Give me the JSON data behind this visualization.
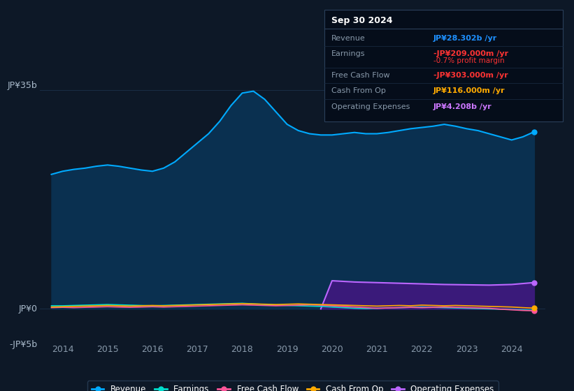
{
  "background_color": "#0d1827",
  "plot_bg_color": "#0d1827",
  "grid_color": "#1a2e45",
  "title_box": {
    "date": "Sep 30 2024",
    "rows": [
      {
        "label": "Revenue",
        "value": "JP¥28.302b /yr",
        "value_color": "#1e90ff"
      },
      {
        "label": "Earnings",
        "value": "-JP¥209.000m /yr",
        "value_color": "#ff3333",
        "sub": "-0.7% profit margin",
        "sub_color": "#ff3333"
      },
      {
        "label": "Free Cash Flow",
        "value": "-JP¥303.000m /yr",
        "value_color": "#ff3333"
      },
      {
        "label": "Cash From Op",
        "value": "JP¥116.000m /yr",
        "value_color": "#ffaa00"
      },
      {
        "label": "Operating Expenses",
        "value": "JP¥4.208b /yr",
        "value_color": "#cc77ff"
      }
    ]
  },
  "years": [
    2013.75,
    2014.0,
    2014.25,
    2014.5,
    2014.75,
    2015.0,
    2015.25,
    2015.5,
    2015.75,
    2016.0,
    2016.25,
    2016.5,
    2016.75,
    2017.0,
    2017.25,
    2017.5,
    2017.75,
    2018.0,
    2018.25,
    2018.5,
    2018.75,
    2019.0,
    2019.25,
    2019.5,
    2019.75,
    2020.0,
    2020.25,
    2020.5,
    2020.75,
    2021.0,
    2021.25,
    2021.5,
    2021.75,
    2022.0,
    2022.25,
    2022.5,
    2022.75,
    2023.0,
    2023.25,
    2023.5,
    2023.75,
    2024.0,
    2024.25,
    2024.5
  ],
  "revenue": [
    21.5,
    22.0,
    22.3,
    22.5,
    22.8,
    23.0,
    22.8,
    22.5,
    22.2,
    22.0,
    22.5,
    23.5,
    25.0,
    26.5,
    28.0,
    30.0,
    32.5,
    34.5,
    34.8,
    33.5,
    31.5,
    29.5,
    28.5,
    28.0,
    27.8,
    27.8,
    28.0,
    28.2,
    28.0,
    28.0,
    28.2,
    28.5,
    28.8,
    29.0,
    29.2,
    29.5,
    29.2,
    28.8,
    28.5,
    28.0,
    27.5,
    27.0,
    27.5,
    28.302
  ],
  "earnings": [
    0.5,
    0.5,
    0.55,
    0.6,
    0.65,
    0.7,
    0.65,
    0.6,
    0.55,
    0.5,
    0.55,
    0.6,
    0.65,
    0.7,
    0.75,
    0.8,
    0.85,
    0.9,
    0.8,
    0.7,
    0.6,
    0.55,
    0.5,
    0.45,
    0.4,
    0.3,
    0.2,
    0.1,
    0.05,
    0.1,
    0.15,
    0.2,
    0.25,
    0.3,
    0.25,
    0.2,
    0.15,
    0.1,
    0.05,
    0.0,
    -0.05,
    -0.1,
    -0.15,
    -0.209
  ],
  "free_cash_flow": [
    0.2,
    0.25,
    0.2,
    0.25,
    0.3,
    0.35,
    0.3,
    0.25,
    0.3,
    0.35,
    0.3,
    0.35,
    0.4,
    0.45,
    0.5,
    0.55,
    0.6,
    0.65,
    0.6,
    0.55,
    0.5,
    0.55,
    0.6,
    0.65,
    0.6,
    0.5,
    0.4,
    0.3,
    0.2,
    0.1,
    0.15,
    0.2,
    0.25,
    0.2,
    0.25,
    0.3,
    0.25,
    0.2,
    0.15,
    0.1,
    -0.05,
    -0.15,
    -0.25,
    -0.303
  ],
  "cash_from_op": [
    0.3,
    0.35,
    0.4,
    0.45,
    0.5,
    0.55,
    0.5,
    0.45,
    0.5,
    0.55,
    0.5,
    0.55,
    0.6,
    0.65,
    0.7,
    0.75,
    0.8,
    0.85,
    0.8,
    0.75,
    0.7,
    0.75,
    0.8,
    0.75,
    0.7,
    0.65,
    0.6,
    0.55,
    0.5,
    0.45,
    0.5,
    0.55,
    0.5,
    0.6,
    0.55,
    0.5,
    0.55,
    0.5,
    0.45,
    0.4,
    0.35,
    0.3,
    0.2,
    0.116
  ],
  "op_expenses_x": [
    2019.75,
    2020.0,
    2020.5,
    2021.0,
    2021.5,
    2022.0,
    2022.5,
    2023.0,
    2023.5,
    2024.0,
    2024.5
  ],
  "op_expenses_y": [
    0.0,
    4.5,
    4.3,
    4.2,
    4.1,
    4.0,
    3.9,
    3.85,
    3.8,
    3.9,
    4.208
  ],
  "ylim": [
    -5,
    40
  ],
  "xlim_min": 2013.5,
  "xlim_max": 2024.75,
  "xticks": [
    2014,
    2015,
    2016,
    2017,
    2018,
    2019,
    2020,
    2021,
    2022,
    2023,
    2024
  ],
  "y_label_35b_text": "JP¥35b",
  "y_label_0_text": "JP¥0",
  "y_label_neg5b_text": "-JP¥5b",
  "y_val_35": 35,
  "y_val_0": 0,
  "y_val_neg5": -5,
  "revenue_color": "#00aaff",
  "revenue_fill": "#0a3050",
  "earnings_color": "#00ddcc",
  "fcf_color": "#ff5599",
  "cash_op_color": "#ffaa00",
  "op_exp_color": "#bb66ff",
  "op_exp_fill": "#3a1a7a",
  "legend_bg": "#0d1827",
  "legend_border": "#2a3f5a",
  "dot_color_revenue": "#00aaff",
  "dot_color_op_exp": "#bb66ff",
  "dot_color_fcf": "#ff5599",
  "dot_color_cash_op": "#ffaa00"
}
